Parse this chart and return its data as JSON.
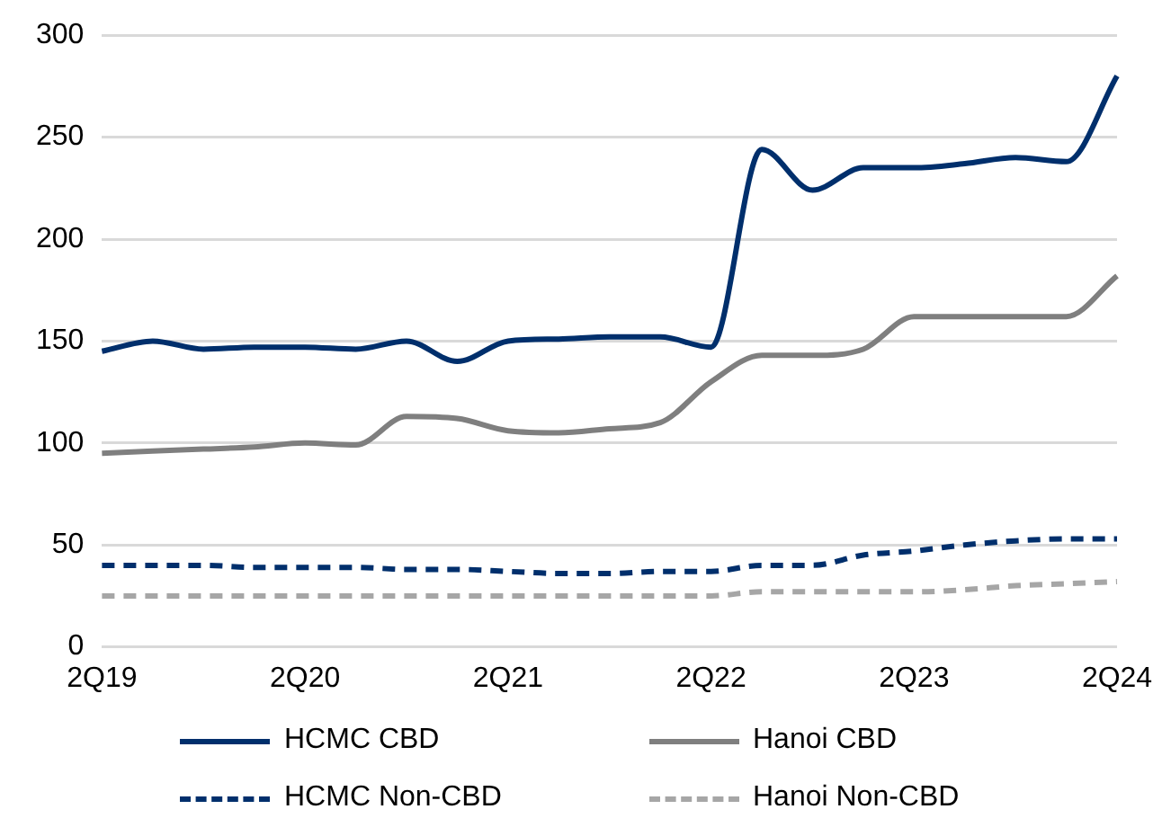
{
  "chart_data": {
    "type": "line",
    "categories": [
      "2Q19",
      null,
      null,
      null,
      "2Q20",
      null,
      null,
      null,
      "2Q21",
      null,
      null,
      null,
      "2Q22",
      null,
      null,
      null,
      "2Q23",
      null,
      null,
      null,
      "2Q24"
    ],
    "series": [
      {
        "name": "HCMC CBD",
        "color": "#002f6c",
        "line_style": "solid",
        "values": [
          145,
          150,
          146,
          147,
          147,
          146,
          150,
          140,
          150,
          151,
          152,
          152,
          147,
          244,
          224,
          235,
          235,
          237,
          240,
          238,
          280
        ]
      },
      {
        "name": "Hanoi CBD",
        "color": "#7f7f7f",
        "line_style": "solid",
        "values": [
          95,
          96,
          97,
          98,
          100,
          99,
          113,
          112,
          106,
          105,
          107,
          110,
          130,
          143,
          143,
          146,
          162,
          162,
          162,
          162,
          182
        ]
      },
      {
        "name": "HCMC Non-CBD",
        "color": "#002f6c",
        "line_style": "dashed",
        "values": [
          40,
          40,
          40,
          39,
          39,
          39,
          38,
          38,
          37,
          36,
          36,
          37,
          37,
          40,
          40,
          45,
          47,
          50,
          52,
          53,
          53
        ]
      },
      {
        "name": "Hanoi Non-CBD",
        "color": "#a6a6a6",
        "line_style": "dashed",
        "values": [
          25,
          25,
          25,
          25,
          25,
          25,
          25,
          25,
          25,
          25,
          25,
          25,
          25,
          27,
          27,
          27,
          27,
          28,
          30,
          31,
          32
        ]
      }
    ],
    "ylim": [
      0,
      300
    ],
    "yticks": [
      0,
      50,
      100,
      150,
      200,
      250,
      300
    ],
    "grid": "y",
    "legend": "bottom",
    "marker": "none"
  }
}
